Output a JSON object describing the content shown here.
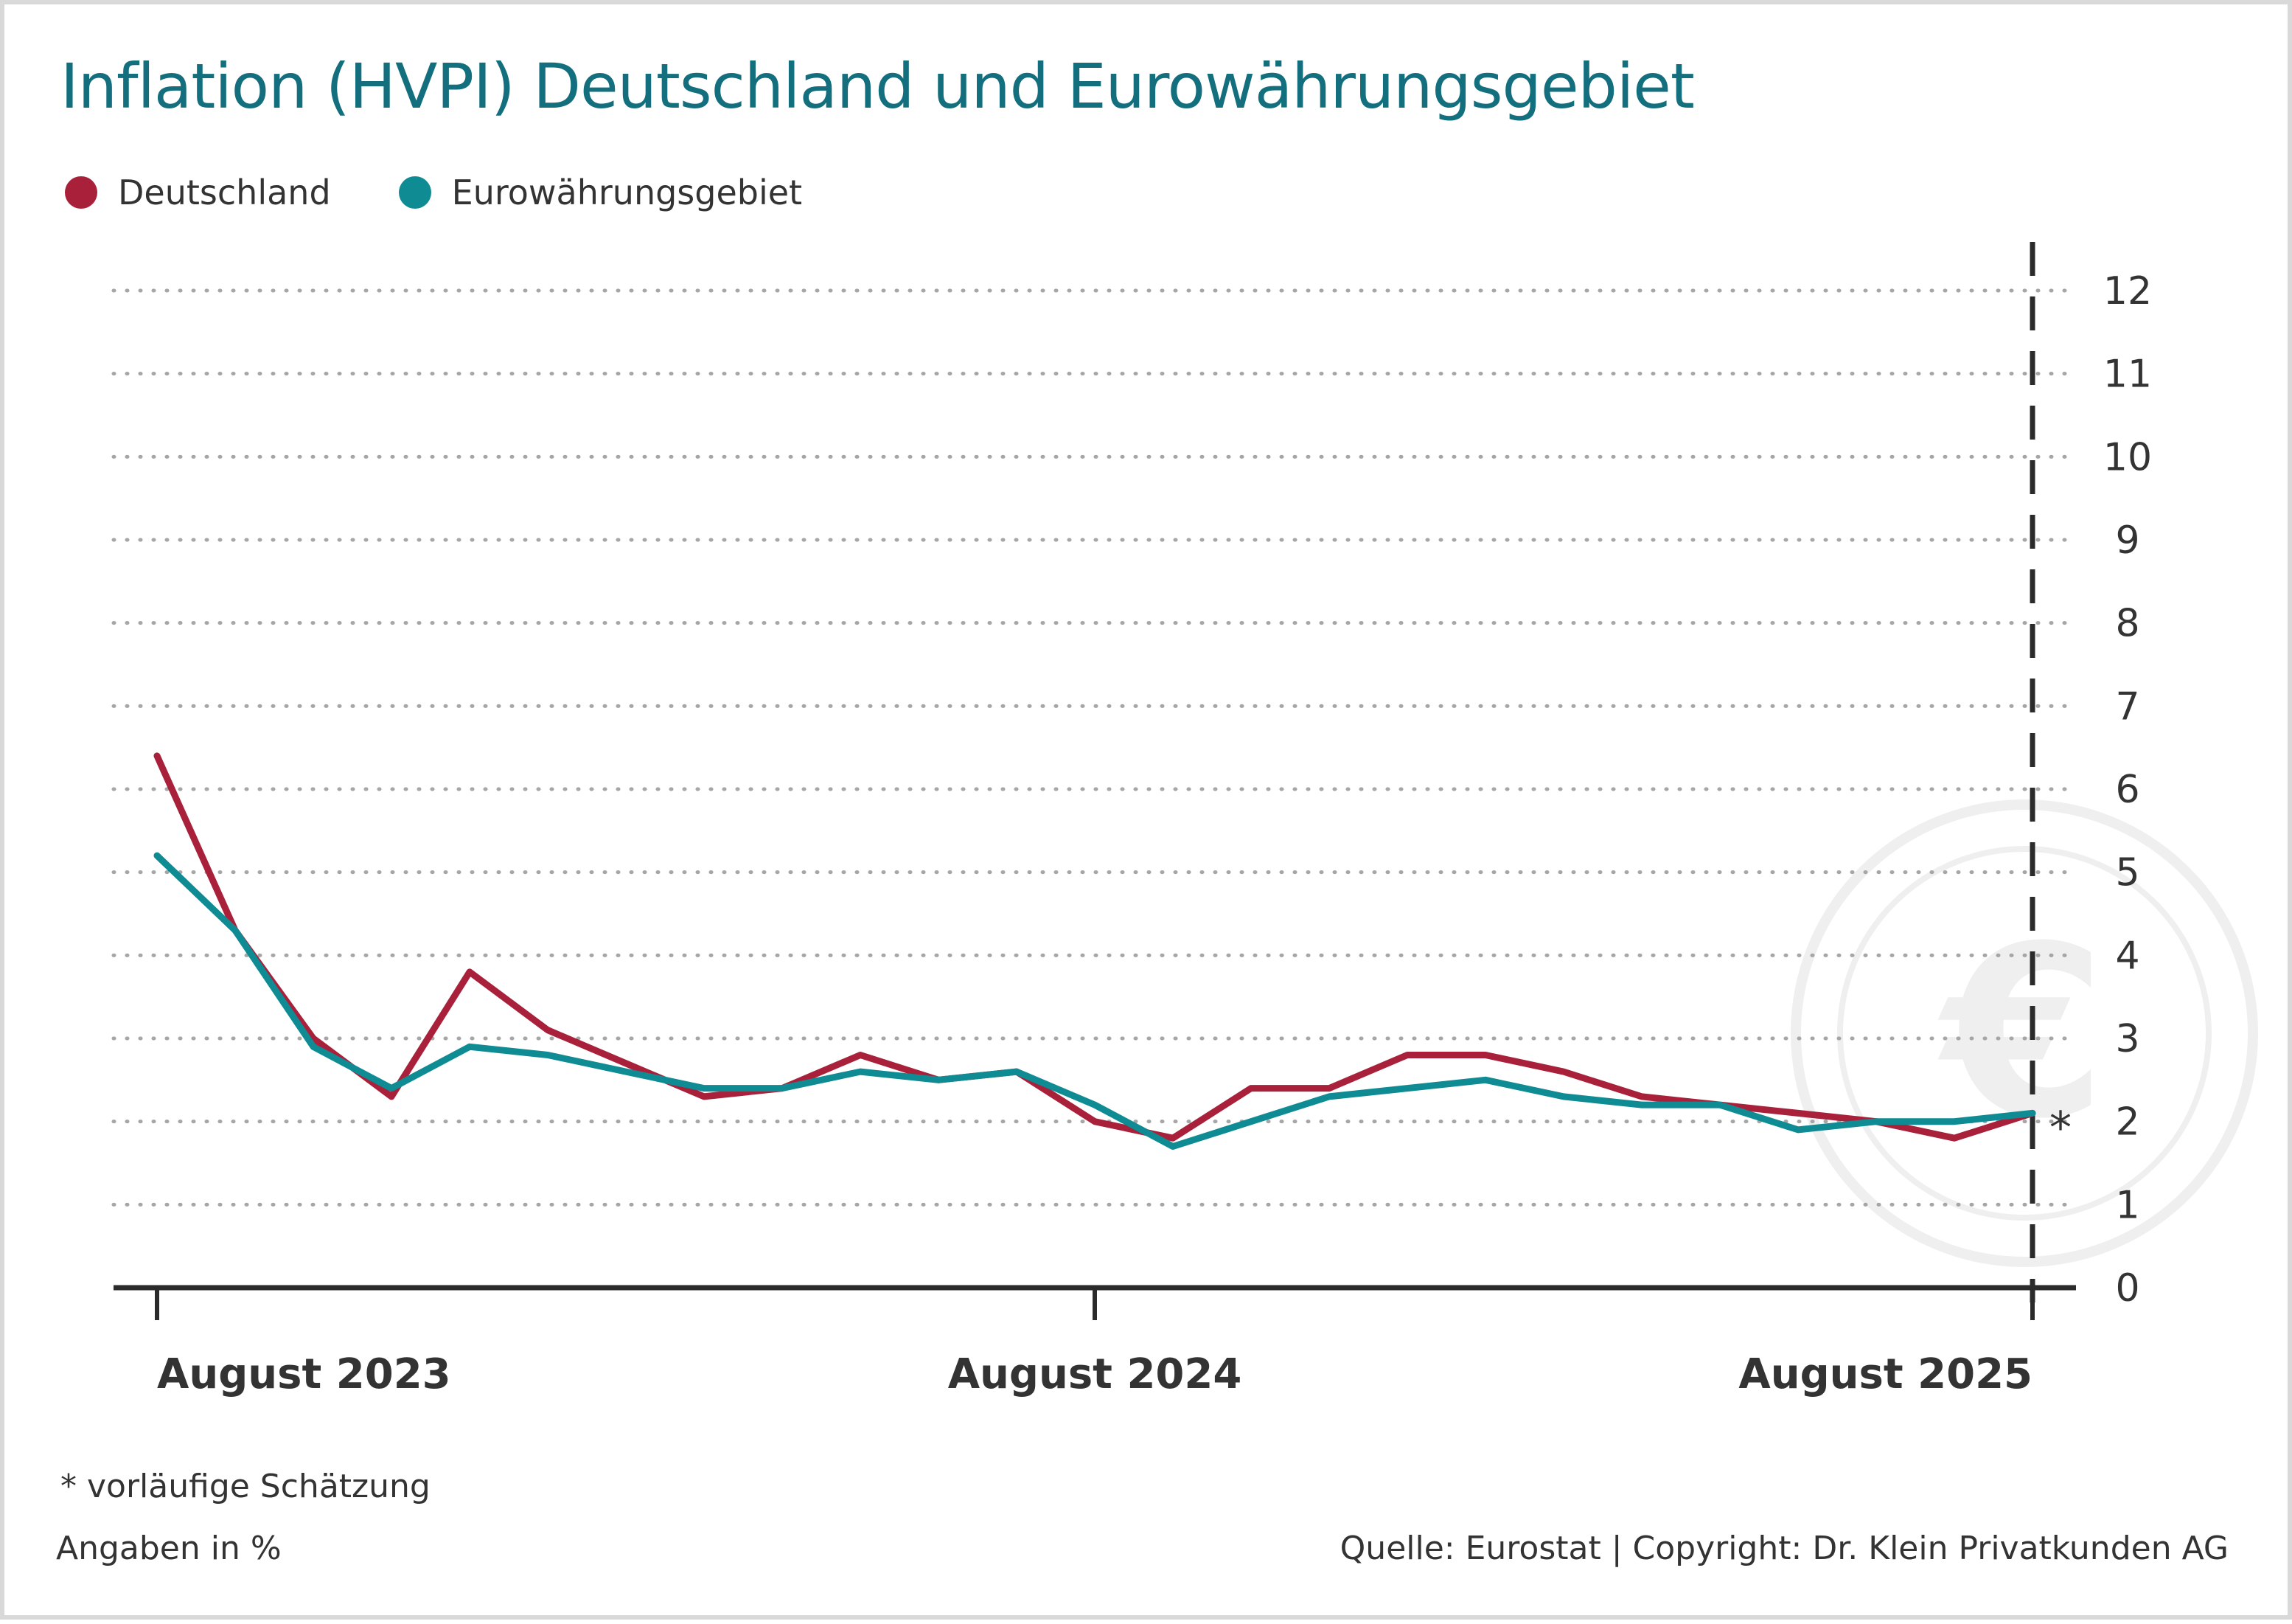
{
  "title": "Inflation (HVPI) Deutschland und Eurowährungsgebiet",
  "footnote": "*  vorläufige Schätzung",
  "units": "Angaben in %",
  "source": "Quelle: Eurostat | Copyright: Dr. Klein Privatkunden AG",
  "estimate_marker": "*",
  "watermark_icon": "euro-coin-icon",
  "colors": {
    "title": "#136e7d",
    "deutschland": "#a8203a",
    "euro": "#0f8b93",
    "grid": "#a6a6a6",
    "axis": "#2b2b2b",
    "text": "#333333"
  },
  "chart_data": {
    "type": "line",
    "title": "Inflation (HVPI) Deutschland und Eurowährungsgebiet",
    "xlabel": "",
    "ylabel": "",
    "x": [
      "2023-08",
      "2023-09",
      "2023-10",
      "2023-11",
      "2023-12",
      "2024-01",
      "2024-02",
      "2024-03",
      "2024-04",
      "2024-05",
      "2024-06",
      "2024-07",
      "2024-08",
      "2024-09",
      "2024-10",
      "2024-11",
      "2024-12",
      "2025-01",
      "2025-02",
      "2025-03",
      "2025-04",
      "2025-05",
      "2025-06",
      "2025-07",
      "2025-08"
    ],
    "x_tick_labels": [
      {
        "x": "2023-08",
        "label": "August 2023"
      },
      {
        "x": "2024-08",
        "label": "August 2024"
      },
      {
        "x": "2025-08",
        "label": "August 2025"
      }
    ],
    "ylim": [
      0,
      12
    ],
    "y_ticks": [
      0,
      1,
      2,
      3,
      4,
      5,
      6,
      7,
      8,
      9,
      10,
      11,
      12
    ],
    "grid": true,
    "legend_position": "top-left",
    "series": [
      {
        "name": "Deutschland",
        "color": "#a8203a",
        "values": [
          6.4,
          4.3,
          3.0,
          2.3,
          3.8,
          3.1,
          2.7,
          2.3,
          2.4,
          2.8,
          2.5,
          2.6,
          2.0,
          1.8,
          2.4,
          2.4,
          2.8,
          2.8,
          2.6,
          2.3,
          2.2,
          2.1,
          2.0,
          1.8,
          2.1
        ]
      },
      {
        "name": "Eurowährungsgebiet",
        "color": "#0f8b93",
        "values": [
          5.2,
          4.3,
          2.9,
          2.4,
          2.9,
          2.8,
          2.6,
          2.4,
          2.4,
          2.6,
          2.5,
          2.6,
          2.2,
          1.7,
          2.0,
          2.3,
          2.4,
          2.5,
          2.3,
          2.2,
          2.2,
          1.9,
          2.0,
          2.0,
          2.1
        ]
      }
    ],
    "annotations": [
      {
        "x": "2025-08",
        "text": "*",
        "meaning": "vorläufige Schätzung"
      }
    ]
  }
}
